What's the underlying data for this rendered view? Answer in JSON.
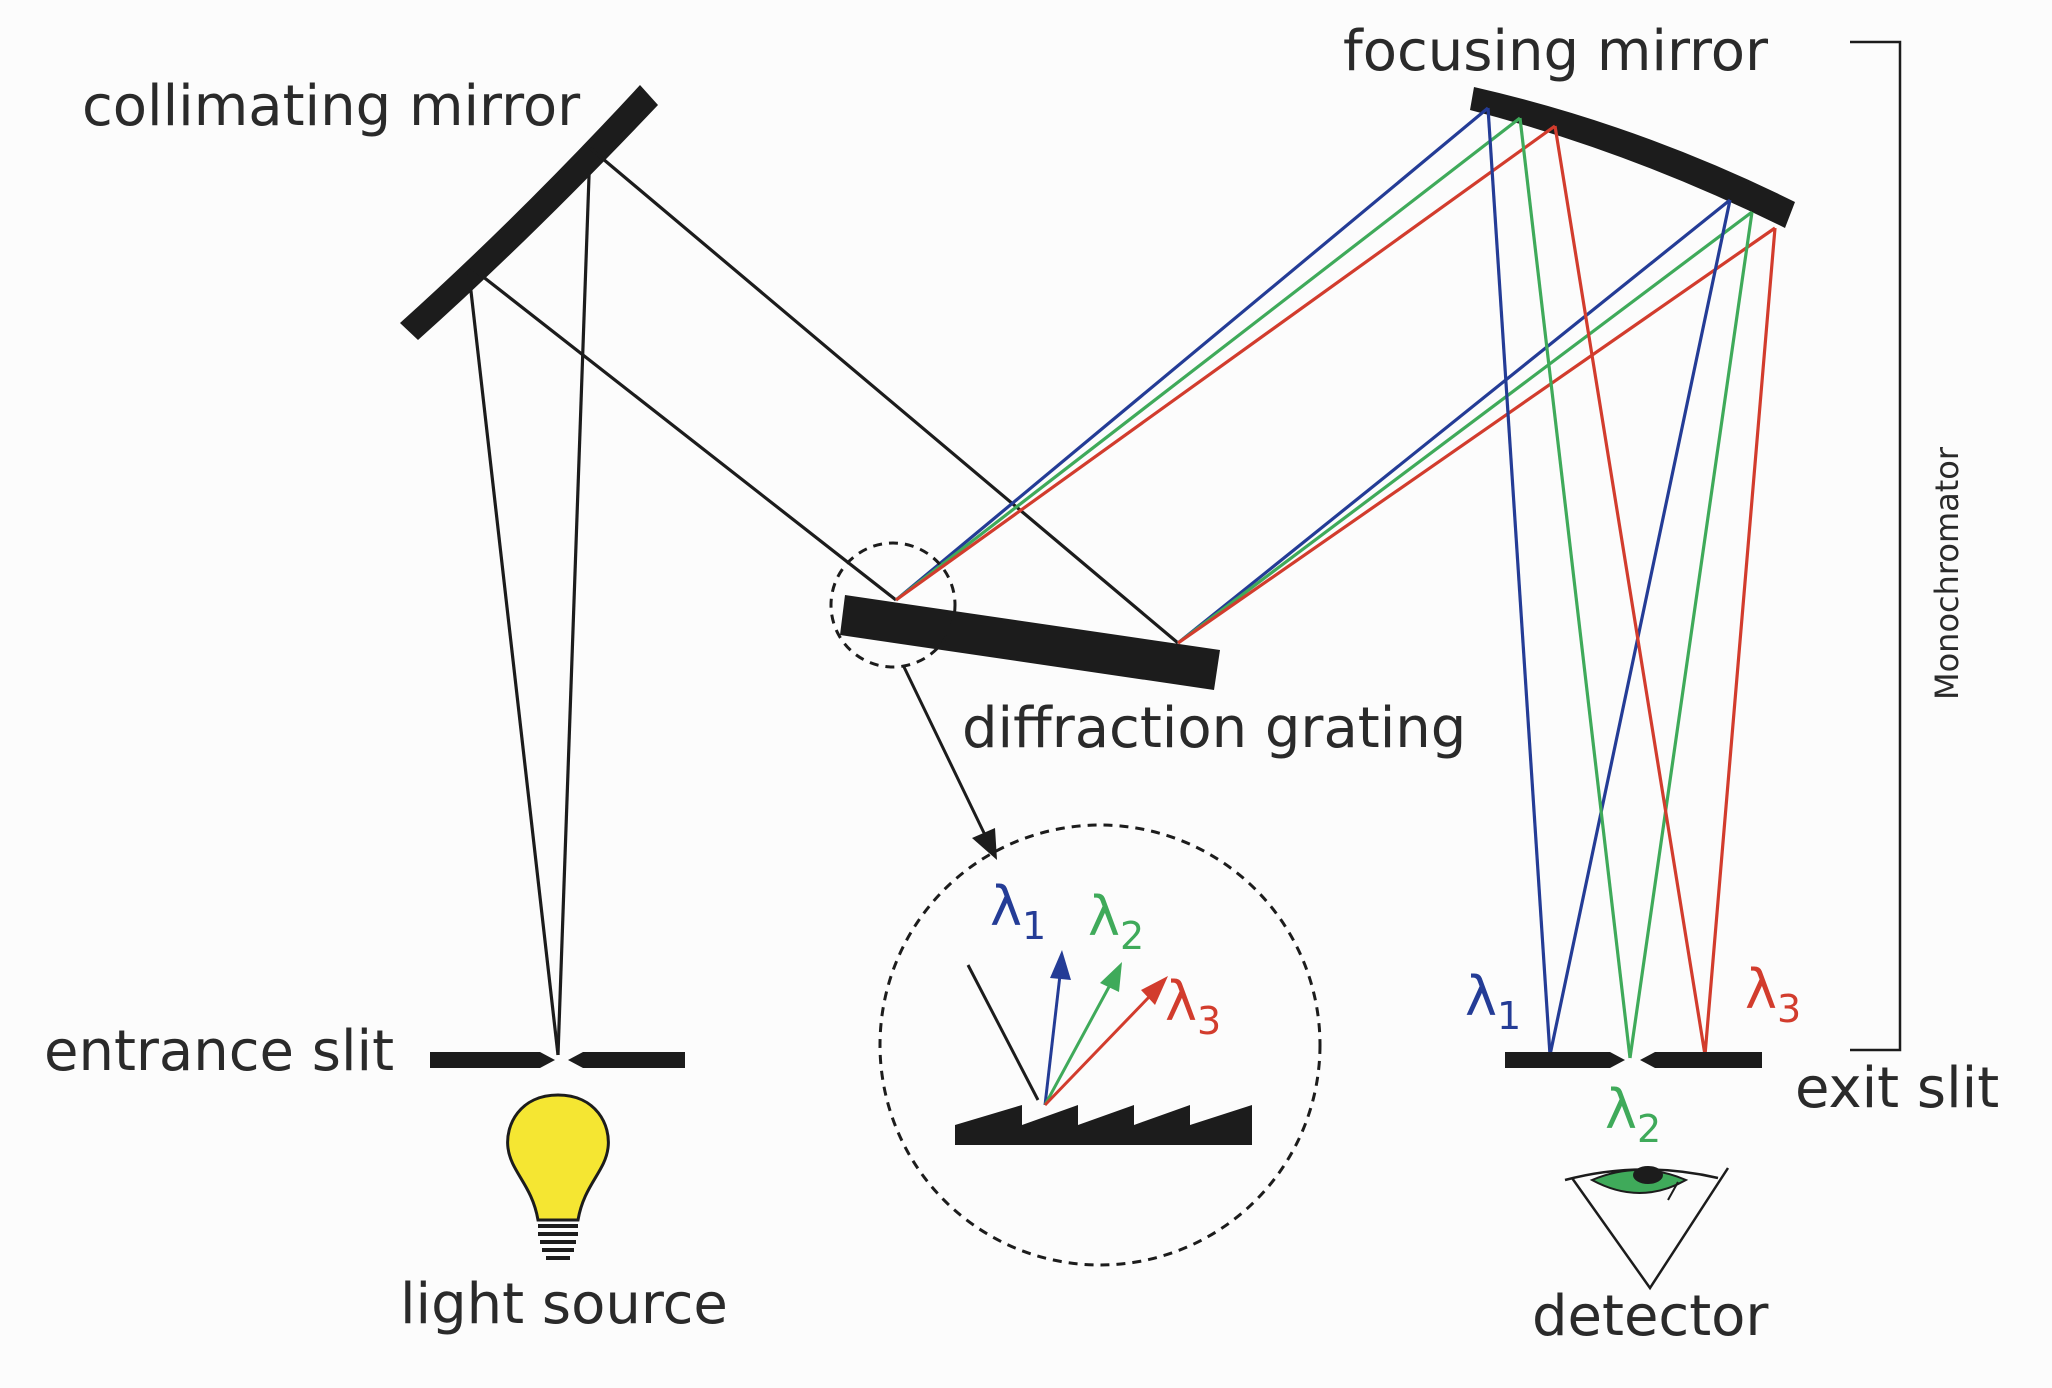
{
  "labels": {
    "collimating_mirror": "collimating mirror",
    "focusing_mirror": "focusing mirror",
    "diffraction_grating": "diffraction grating",
    "entrance_slit": "entrance slit",
    "exit_slit": "exit slit",
    "light_source": "light source",
    "detector": "detector",
    "monochromator": "Monochromator"
  },
  "wavelengths": {
    "symbol": "λ",
    "l1": "1",
    "l2": "2",
    "l3": "3"
  },
  "colors": {
    "lambda1": "#243c96",
    "lambda2": "#3faa5a",
    "lambda3": "#d23c2d",
    "bulb": "#f5e632",
    "optics": "#1c1c1c"
  }
}
